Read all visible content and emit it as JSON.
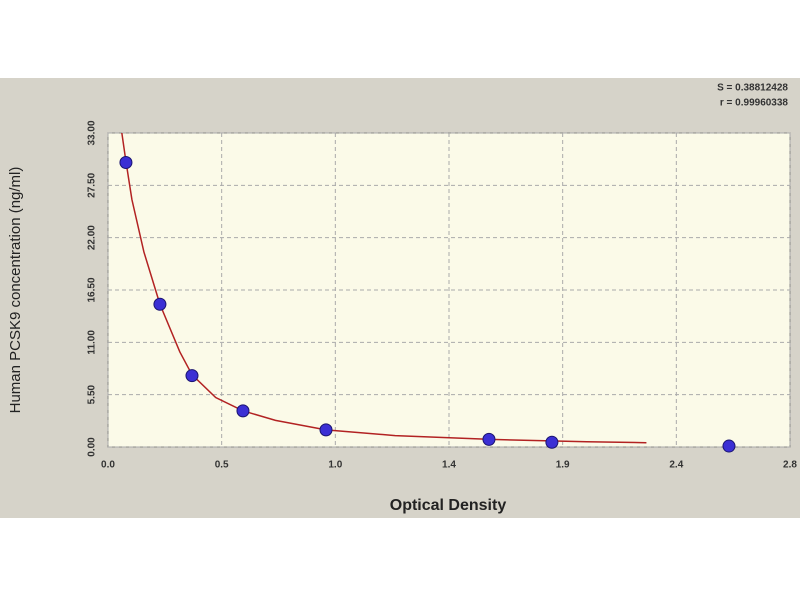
{
  "chart_data": {
    "type": "scatter",
    "x_label": "Optical Density",
    "y_label": "Human PCSK9 concentration (ng/ml)",
    "annotations": [
      "S = 0.38812428",
      "r = 0.99960338"
    ],
    "xlim": [
      0,
      2.85
    ],
    "ylim": [
      0,
      33
    ],
    "xticks": [
      {
        "value": 0,
        "label": "0.0"
      },
      {
        "value": 0.475,
        "label": "0.5"
      },
      {
        "value": 0.95,
        "label": "1.0"
      },
      {
        "value": 1.425,
        "label": "1.4"
      },
      {
        "value": 1.9,
        "label": "1.9"
      },
      {
        "value": 2.375,
        "label": "2.4"
      },
      {
        "value": 2.85,
        "label": "2.8"
      }
    ],
    "yticks": [
      {
        "value": 0,
        "label": "0.00"
      },
      {
        "value": 5.5,
        "label": "5.50"
      },
      {
        "value": 11,
        "label": "11.00"
      },
      {
        "value": 16.5,
        "label": "16.50"
      },
      {
        "value": 22,
        "label": "22.00"
      },
      {
        "value": 27.5,
        "label": "27.50"
      },
      {
        "value": 33,
        "label": "33.00"
      }
    ],
    "grid": true,
    "series": [
      {
        "color": "#3b2fd4",
        "x": [
          0.075,
          0.217,
          0.351,
          0.564,
          0.911,
          1.592,
          1.855,
          2.595
        ],
        "values": [
          29.9,
          15.0,
          7.5,
          3.8,
          1.8,
          0.8,
          0.5,
          0.1
        ]
      }
    ],
    "fit": {
      "color": "#b22222",
      "x": [
        0.055,
        0.075,
        0.1,
        0.15,
        0.217,
        0.3,
        0.351,
        0.45,
        0.564,
        0.7,
        0.911,
        1.2,
        1.6,
        2.0,
        2.25
      ],
      "values": [
        33.5,
        30,
        26,
        20.5,
        15,
        10,
        7.6,
        5.2,
        3.8,
        2.8,
        1.8,
        1.2,
        0.8,
        0.55,
        0.45
      ]
    }
  }
}
